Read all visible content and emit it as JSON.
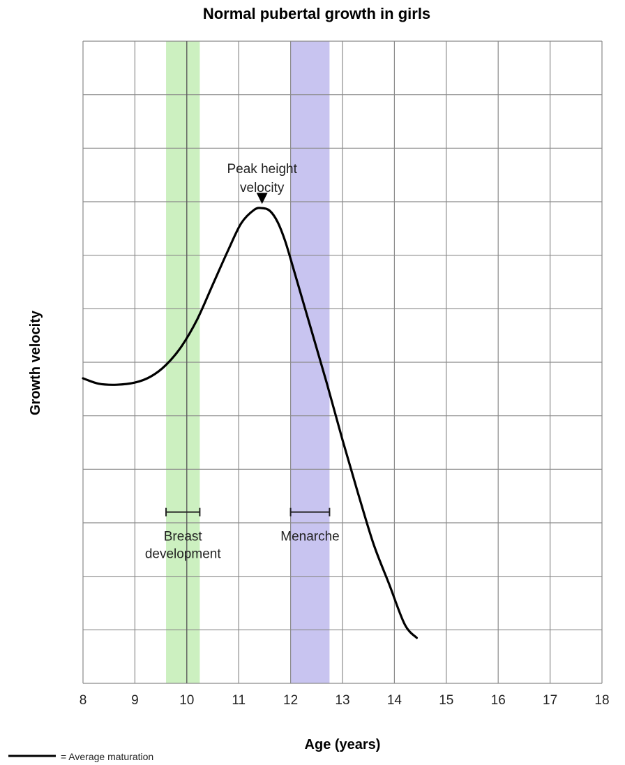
{
  "chart_data": {
    "type": "line",
    "title": "Normal pubertal growth in girls",
    "xlabel": "Age (years)",
    "ylabel": "Growth velocity",
    "xlim": [
      8,
      18
    ],
    "ylim": [
      0,
      12
    ],
    "x_ticks": [
      "8",
      "9",
      "10",
      "11",
      "12",
      "13",
      "14",
      "15",
      "16",
      "17",
      "18"
    ],
    "y_grid_lines": 12,
    "grid": true,
    "colors": {
      "breast_band": "#ccf0c0",
      "menarche_band": "#c8c4f0",
      "curve": "#000000",
      "grid": "#8a8a8a"
    },
    "series": [
      {
        "x": [
          8.0,
          8.3,
          8.65,
          9.0,
          9.3,
          9.6,
          9.9,
          10.2,
          10.5,
          10.8,
          11.05,
          11.3,
          11.45,
          11.6,
          11.75,
          11.9,
          12.1,
          12.4,
          12.7,
          13.0,
          13.3,
          13.6,
          13.9,
          14.2,
          14.43
        ],
        "y": [
          5.7,
          5.6,
          5.58,
          5.62,
          5.73,
          5.95,
          6.3,
          6.8,
          7.45,
          8.1,
          8.6,
          8.85,
          8.88,
          8.83,
          8.62,
          8.25,
          7.6,
          6.6,
          5.6,
          4.55,
          3.55,
          2.6,
          1.85,
          1.1,
          0.85
        ]
      }
    ],
    "bands": [
      {
        "name": "Breast development",
        "x_start": 9.6,
        "x_end": 10.25,
        "label_lines": [
          "Breast",
          "development"
        ]
      },
      {
        "name": "Menarche",
        "x_start": 12.0,
        "x_end": 12.75,
        "label_lines": [
          "Menarche"
        ]
      }
    ],
    "band_marker_x": 10.0,
    "range_markers_y": 3.2,
    "annotation": {
      "lines": [
        "Peak height",
        "velocity"
      ],
      "x": 11.45,
      "y": 8.88
    },
    "legend": {
      "text": "= Average maturation",
      "placement": "bottom-left"
    }
  }
}
